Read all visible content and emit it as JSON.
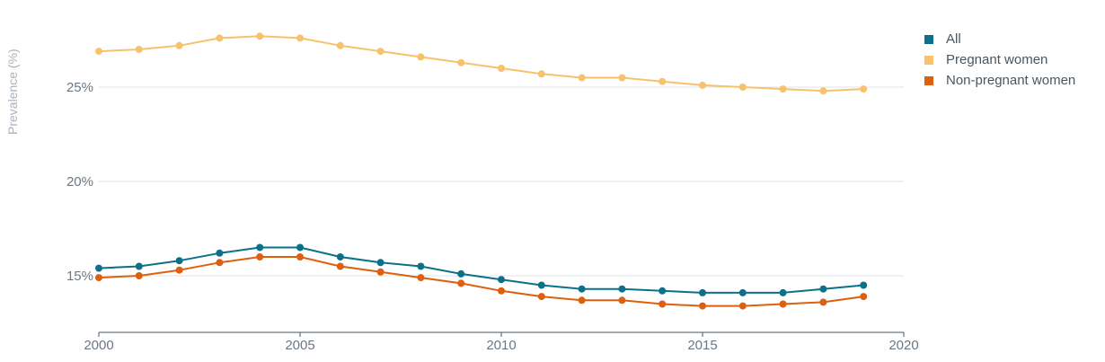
{
  "chart_data": {
    "type": "line",
    "ylabel": "Prevalence (%)",
    "x": [
      2000,
      2001,
      2002,
      2003,
      2004,
      2005,
      2006,
      2007,
      2008,
      2009,
      2010,
      2011,
      2012,
      2013,
      2014,
      2015,
      2016,
      2017,
      2018,
      2019
    ],
    "series": [
      {
        "name": "All",
        "color": "#0d7089",
        "values": [
          15.4,
          15.5,
          15.8,
          16.2,
          16.5,
          16.5,
          16.0,
          15.7,
          15.5,
          15.1,
          14.8,
          14.5,
          14.3,
          14.3,
          14.2,
          14.1,
          14.1,
          14.1,
          14.3,
          14.5
        ]
      },
      {
        "name": "Pregnant women",
        "color": "#f7c26b",
        "values": [
          26.9,
          27.0,
          27.2,
          27.6,
          27.7,
          27.6,
          27.2,
          26.9,
          26.6,
          26.3,
          26.0,
          25.7,
          25.5,
          25.5,
          25.3,
          25.1,
          25.0,
          24.9,
          24.8,
          24.9
        ]
      },
      {
        "name": "Non-pregnant women",
        "color": "#de5f0f",
        "values": [
          14.9,
          15.0,
          15.3,
          15.7,
          16.0,
          16.0,
          15.5,
          15.2,
          14.9,
          14.6,
          14.2,
          13.9,
          13.7,
          13.7,
          13.5,
          13.4,
          13.4,
          13.5,
          13.6,
          13.9
        ]
      }
    ],
    "xlim": [
      2000,
      2020
    ],
    "ylim": [
      12.0,
      28.5
    ],
    "yticks": [
      15,
      20,
      25
    ],
    "ytick_labels": [
      "15%",
      "20%",
      "25%"
    ],
    "xticks": [
      2000,
      2005,
      2010,
      2015,
      2020
    ],
    "xtick_labels": [
      "2000",
      "2005",
      "2010",
      "2015",
      "2020"
    ],
    "grid": "horizontal",
    "legend_position": "top-right"
  }
}
